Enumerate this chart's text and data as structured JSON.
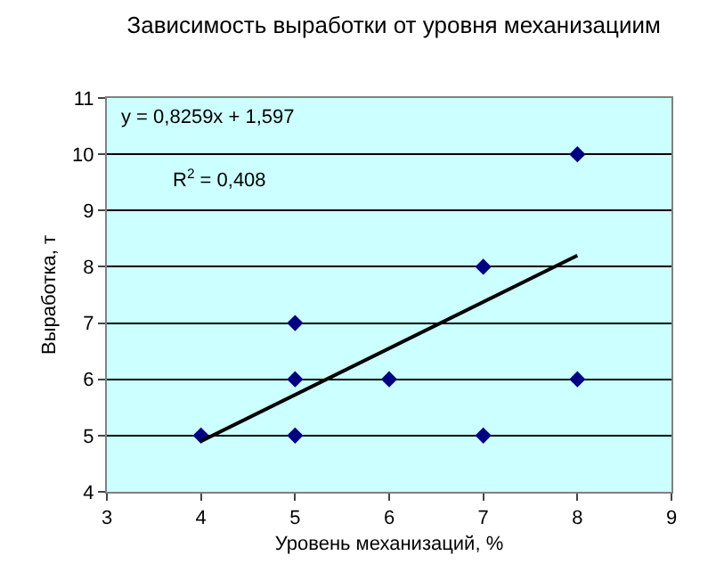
{
  "chart_data": {
    "type": "scatter",
    "title": "Зависимость выработки от уровня механизациим",
    "xlabel": "Уровень механизаций, %",
    "ylabel": "Выработка, т",
    "annotations": [
      "y = 0,8259x + 1,597",
      "R$^{2}$ = 0,408"
    ],
    "series": [
      {
        "type": "scatter",
        "color": "#000080",
        "x": [
          4,
          5,
          5,
          5,
          6,
          7,
          7,
          8,
          8
        ],
        "values": [
          5,
          5,
          6,
          7,
          6,
          5,
          8,
          6,
          10
        ],
        "marker": "diamond"
      },
      {
        "type": "line",
        "color": "#000000",
        "x": [
          4,
          8
        ],
        "values": [
          4.9,
          8.2
        ],
        "marker": "none",
        "line_style": "solid"
      }
    ],
    "xlim": [
      3,
      9
    ],
    "xticks": [
      3,
      4,
      5,
      6,
      7,
      8,
      9
    ],
    "ylim": [
      4,
      11
    ],
    "yticks": [
      4,
      5,
      6,
      7,
      8,
      9,
      10,
      11
    ],
    "grid": "y"
  }
}
